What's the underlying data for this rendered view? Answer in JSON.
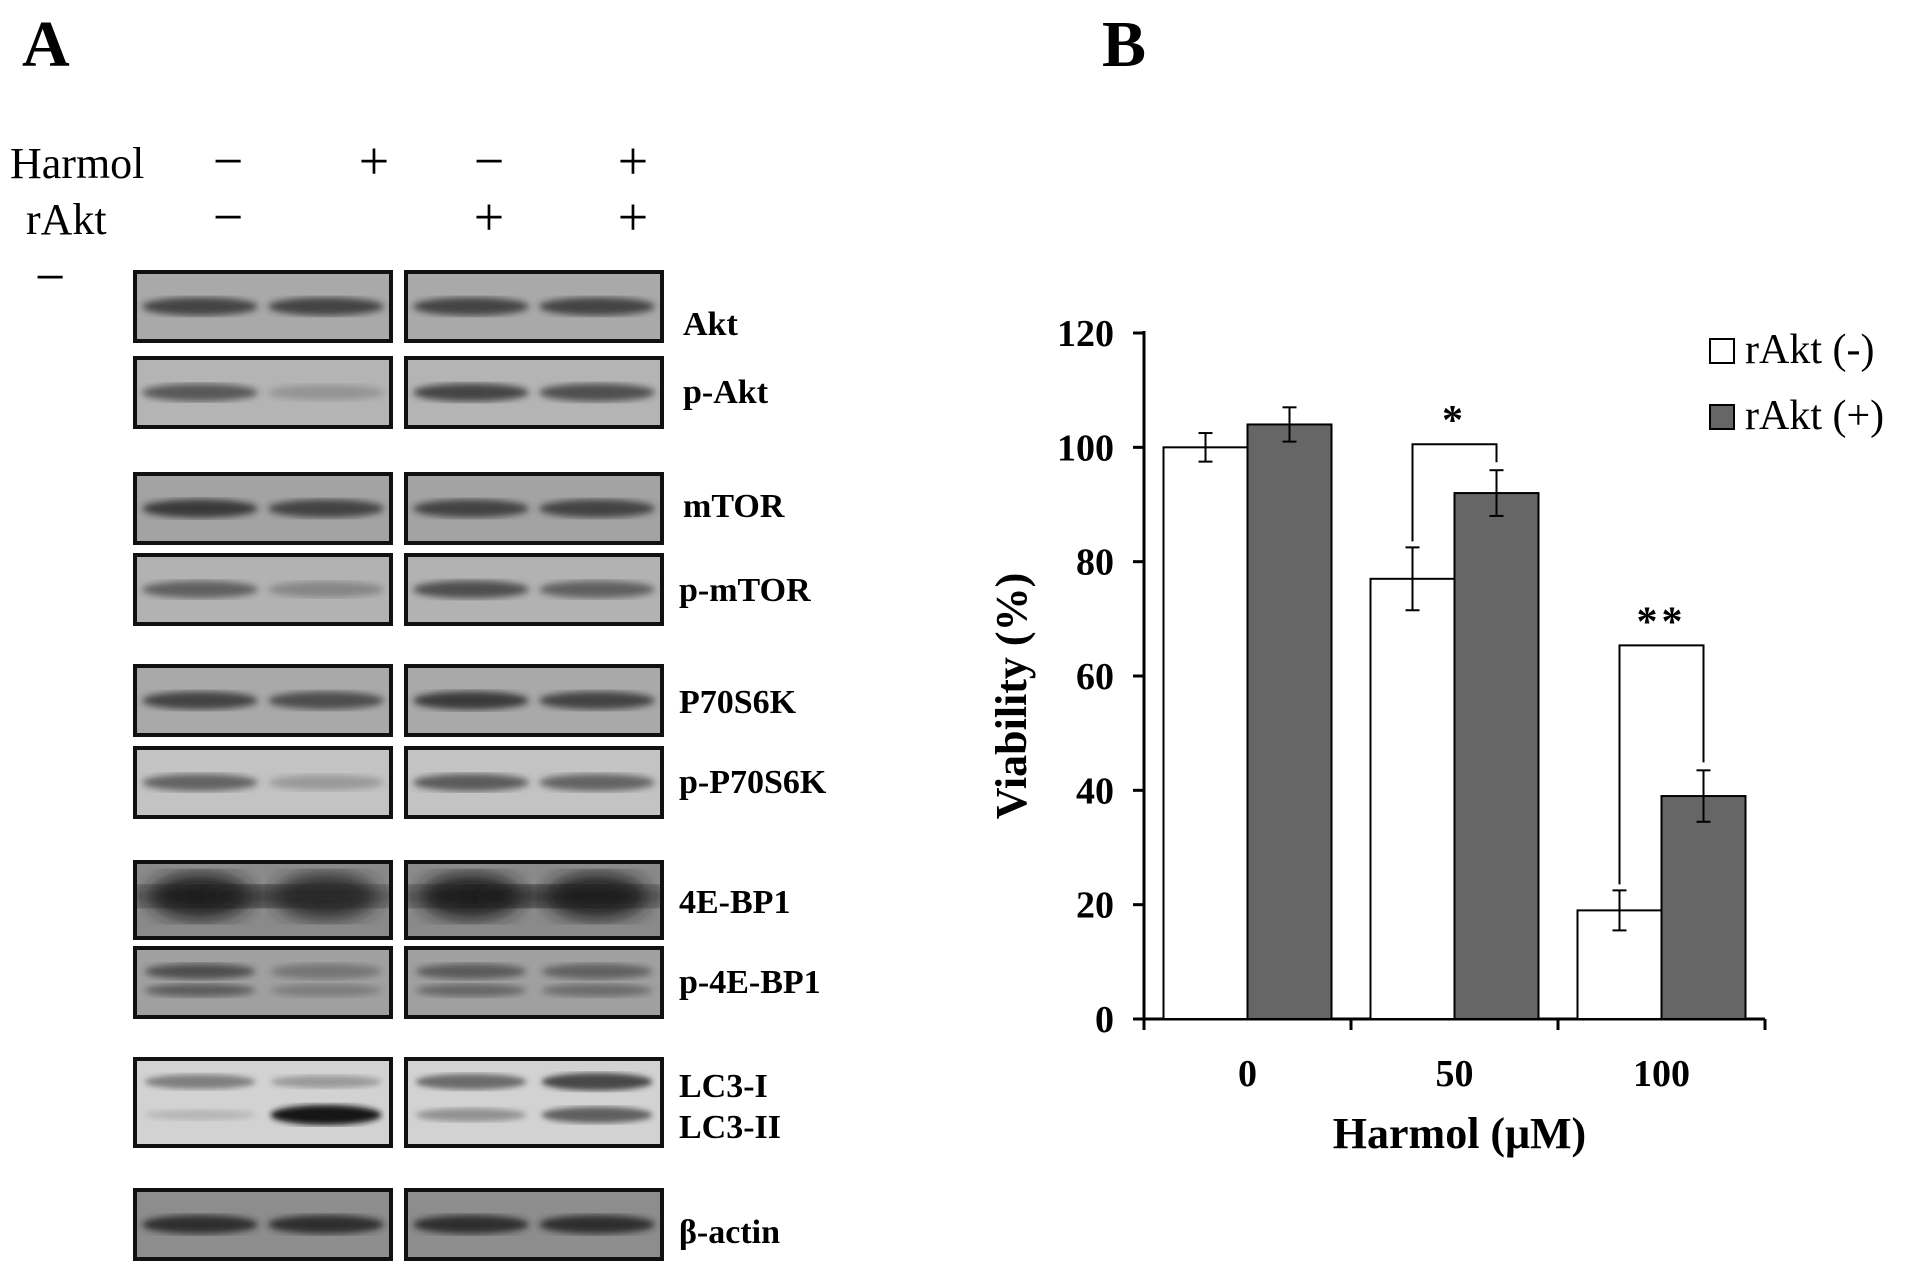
{
  "panel_a": {
    "label": "A",
    "rows": [
      {
        "name": "Harmol",
        "symbols": [
          "−",
          "+",
          "−",
          "+"
        ]
      },
      {
        "name": "rAkt",
        "symbols": [
          "−",
          "",
          "+",
          "+"
        ]
      }
    ],
    "stray_symbol": "−",
    "blots": [
      {
        "label": "Akt",
        "lanes": [
          0.85,
          0.85,
          0.85,
          0.85
        ],
        "bg": "#a9a9a9",
        "type": "single"
      },
      {
        "label": "p-Akt",
        "lanes": [
          0.75,
          0.35,
          0.85,
          0.8
        ],
        "bg": "#b4b4b4",
        "type": "single"
      },
      {
        "label": "mTOR",
        "lanes": [
          0.9,
          0.85,
          0.85,
          0.85
        ],
        "bg": "#a3a3a3",
        "type": "single"
      },
      {
        "label": "p-mTOR",
        "lanes": [
          0.7,
          0.45,
          0.8,
          0.7
        ],
        "bg": "#b2b2b2",
        "type": "single"
      },
      {
        "label": "P70S6K",
        "lanes": [
          0.85,
          0.8,
          0.9,
          0.85
        ],
        "bg": "#a9a9a9",
        "type": "single"
      },
      {
        "label": "p-P70S6K",
        "lanes": [
          0.7,
          0.35,
          0.75,
          0.7
        ],
        "bg": "#c3c3c3",
        "type": "single"
      },
      {
        "label": "4E-BP1",
        "lanes": [
          1.0,
          0.95,
          1.0,
          1.0
        ],
        "bg": "#8a8a8a",
        "type": "blob"
      },
      {
        "label": "p-4E-BP1",
        "lanes": [
          0.75,
          0.45,
          0.65,
          0.6
        ],
        "bg": "#a0a0a0",
        "type": "doublet"
      },
      {
        "label": "β-actin",
        "lanes": [
          0.95,
          0.95,
          0.95,
          0.95
        ],
        "bg": "#8d8d8d",
        "type": "single"
      }
    ],
    "lc3": {
      "label_i": "LC3-I",
      "label_ii": "LC3-II",
      "lc3i_lanes": [
        0.55,
        0.4,
        0.65,
        0.8
      ],
      "lc3ii_lanes": [
        0.2,
        1.0,
        0.45,
        0.7
      ],
      "bg": "#d2d2d2"
    }
  },
  "panel_b": {
    "label": "B",
    "chart_data": {
      "type": "bar",
      "categories": [
        "0",
        "50",
        "100"
      ],
      "series": [
        {
          "name": "rAkt (-)",
          "values": [
            100,
            77,
            19
          ],
          "errors": [
            2.5,
            5.5,
            3.5
          ],
          "color": "#ffffff"
        },
        {
          "name": "rAkt (+)",
          "values": [
            104,
            92,
            39
          ],
          "errors": [
            3,
            4,
            4.5
          ],
          "color": "#666666"
        }
      ],
      "xlabel": "Harmol (μM)",
      "ylabel": "Viability (%)",
      "ylim": [
        0,
        120
      ],
      "yticks": [
        0,
        20,
        40,
        60,
        80,
        100,
        120
      ],
      "grid": false,
      "legend_position": "top-right",
      "significance": [
        {
          "category": "50",
          "label": "*"
        },
        {
          "category": "100",
          "label": "**"
        }
      ]
    }
  }
}
